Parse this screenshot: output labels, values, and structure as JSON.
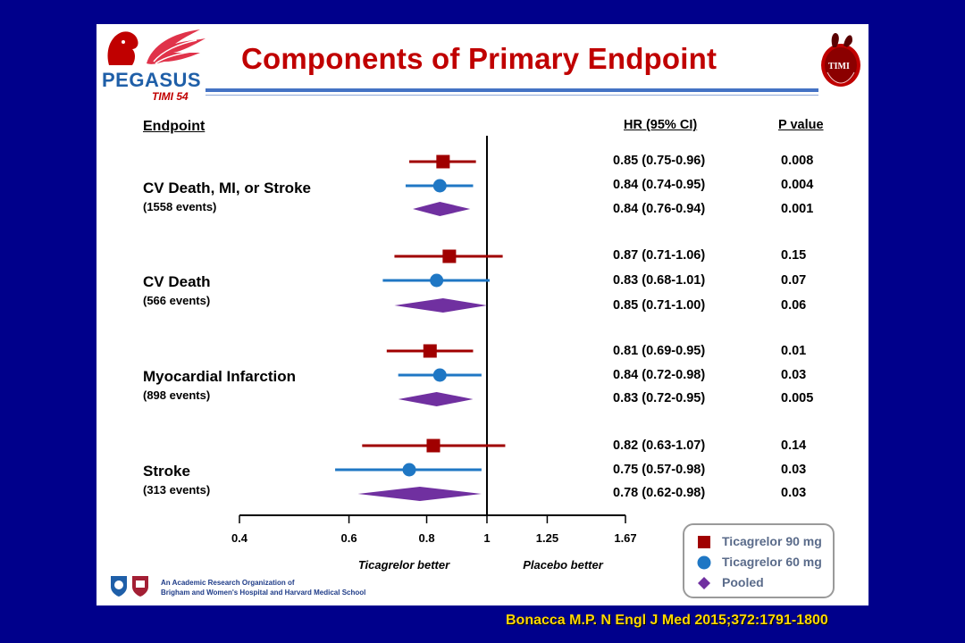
{
  "slide": {
    "title": "Components of Primary Endpoint",
    "logo_left": {
      "name": "PEGASUS",
      "sub": "TIMI 54",
      "icon": "pegasus-horse-logo"
    },
    "logo_right": {
      "name": "TIMI",
      "icon": "timi-seal-logo"
    },
    "footer_text": "An Academic Research Organization of\nBrigham and Women's Hospital and Harvard Medical School",
    "citation": "Bonacca M.P. N Engl J Med 2015;372:1791-1800"
  },
  "columns": {
    "endpoint": "Endpoint",
    "hr": "HR (95% CI)",
    "p": "P value"
  },
  "chart_data": {
    "type": "forest",
    "x_scale": "log",
    "xlim": [
      0.4,
      1.67
    ],
    "x_ticks": [
      {
        "value": 0.4,
        "label": "0.4"
      },
      {
        "value": 0.6,
        "label": "0.6"
      },
      {
        "value": 0.8,
        "label": "0.8"
      },
      {
        "value": 1,
        "label": "1"
      },
      {
        "value": 1.25,
        "label": "1.25"
      },
      {
        "value": 1.67,
        "label": "1.67"
      }
    ],
    "reference_line": 1,
    "x_annotations": {
      "left": "Ticagrelor better",
      "right": "Placebo better"
    },
    "series": [
      {
        "name": "Ticagrelor 90 mg",
        "marker": "square",
        "color": "#a00000"
      },
      {
        "name": "Ticagrelor 60 mg",
        "marker": "circle",
        "color": "#1f77c4"
      },
      {
        "name": "Pooled",
        "marker": "diamond",
        "color": "#7030a0"
      }
    ],
    "legend_position": "bottom-right",
    "groups": [
      {
        "endpoint": "CV Death, MI, or Stroke",
        "events": "(1558 events)",
        "rows": [
          {
            "series": "Ticagrelor 90 mg",
            "hr": 0.85,
            "lo": 0.75,
            "hi": 0.96,
            "hr_text": "0.85 (0.75-0.96)",
            "p": "0.008"
          },
          {
            "series": "Ticagrelor 60 mg",
            "hr": 0.84,
            "lo": 0.74,
            "hi": 0.95,
            "hr_text": "0.84 (0.74-0.95)",
            "p": "0.004"
          },
          {
            "series": "Pooled",
            "hr": 0.84,
            "lo": 0.76,
            "hi": 0.94,
            "hr_text": "0.84 (0.76-0.94)",
            "p": "0.001"
          }
        ]
      },
      {
        "endpoint": "CV Death",
        "events": "(566 events)",
        "rows": [
          {
            "series": "Ticagrelor 90 mg",
            "hr": 0.87,
            "lo": 0.71,
            "hi": 1.06,
            "hr_text": "0.87 (0.71-1.06)",
            "p": "0.15"
          },
          {
            "series": "Ticagrelor 60 mg",
            "hr": 0.83,
            "lo": 0.68,
            "hi": 1.01,
            "hr_text": "0.83 (0.68-1.01)",
            "p": "0.07"
          },
          {
            "series": "Pooled",
            "hr": 0.85,
            "lo": 0.71,
            "hi": 1.0,
            "hr_text": "0.85 (0.71-1.00)",
            "p": "0.06"
          }
        ]
      },
      {
        "endpoint": "Myocardial Infarction",
        "events": "(898 events)",
        "rows": [
          {
            "series": "Ticagrelor 90 mg",
            "hr": 0.81,
            "lo": 0.69,
            "hi": 0.95,
            "hr_text": "0.81 (0.69-0.95)",
            "p": "0.01"
          },
          {
            "series": "Ticagrelor 60 mg",
            "hr": 0.84,
            "lo": 0.72,
            "hi": 0.98,
            "hr_text": "0.84 (0.72-0.98)",
            "p": "0.03"
          },
          {
            "series": "Pooled",
            "hr": 0.83,
            "lo": 0.72,
            "hi": 0.95,
            "hr_text": "0.83 (0.72-0.95)",
            "p": "0.005"
          }
        ]
      },
      {
        "endpoint": "Stroke",
        "events": "(313 events)",
        "rows": [
          {
            "series": "Ticagrelor 90 mg",
            "hr": 0.82,
            "lo": 0.63,
            "hi": 1.07,
            "hr_text": "0.82 (0.63-1.07)",
            "p": "0.14"
          },
          {
            "series": "Ticagrelor 60 mg",
            "hr": 0.75,
            "lo": 0.57,
            "hi": 0.98,
            "hr_text": "0.75 (0.57-0.98)",
            "p": "0.03"
          },
          {
            "series": "Pooled",
            "hr": 0.78,
            "lo": 0.62,
            "hi": 0.98,
            "hr_text": "0.78 (0.62-0.98)",
            "p": "0.03"
          }
        ]
      }
    ]
  }
}
